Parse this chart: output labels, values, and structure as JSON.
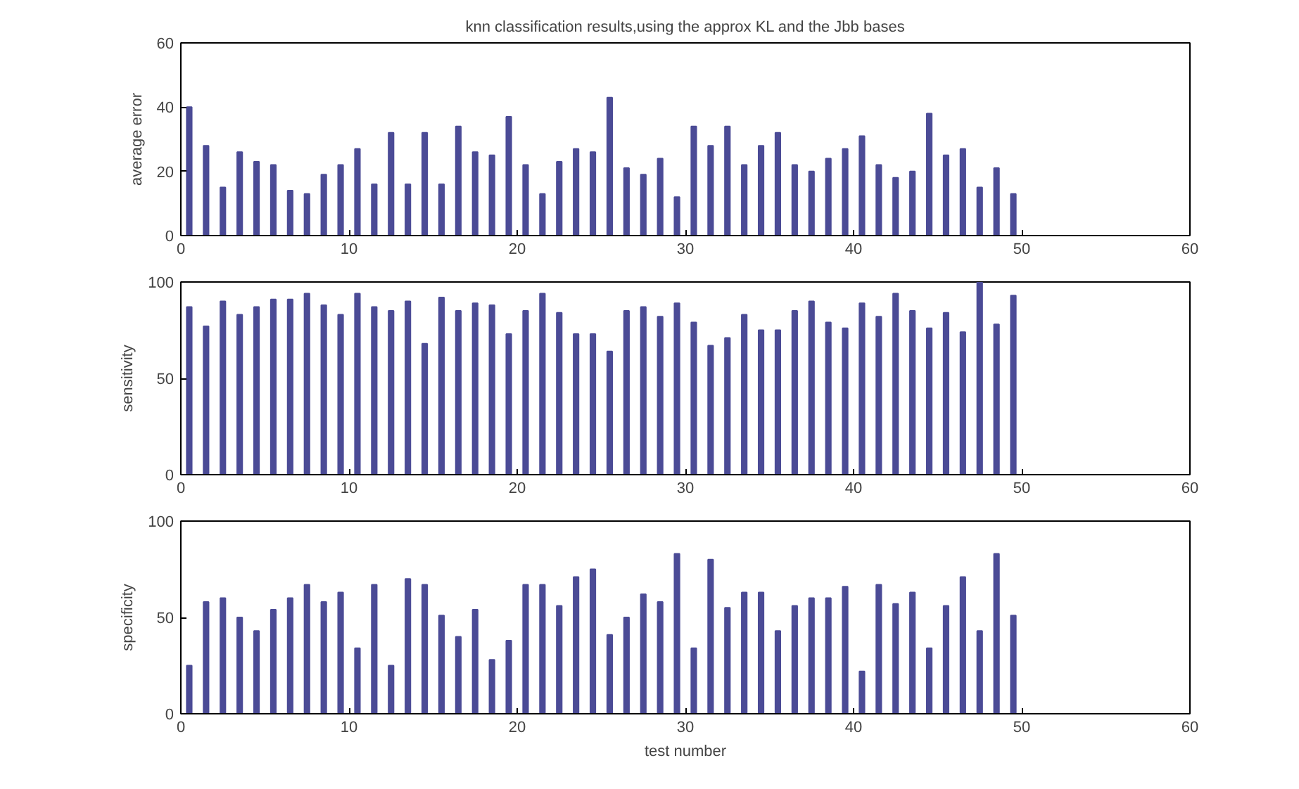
{
  "chart_data": [
    {
      "type": "bar",
      "title": "knn classification results,using the approx KL and the Jbb bases",
      "ylabel": "average error",
      "color": "#4b4b96",
      "x": [
        0.5,
        1.5,
        2.5,
        3.5,
        4.5,
        5.5,
        6.5,
        7.5,
        8.5,
        9.5,
        10.5,
        11.5,
        12.5,
        13.5,
        14.5,
        15.5,
        16.5,
        17.5,
        18.5,
        19.5,
        20.5,
        21.5,
        22.5,
        23.5,
        24.5,
        25.5,
        26.5,
        27.5,
        28.5,
        29.5,
        30.5,
        31.5,
        32.5,
        33.5,
        34.5,
        35.5,
        36.5,
        37.5,
        38.5,
        39.5,
        40.5,
        41.5,
        42.5,
        43.5,
        44.5,
        45.5,
        46.5,
        47.5,
        48.5,
        49.5
      ],
      "values": [
        40,
        28,
        15,
        26,
        23,
        22,
        14,
        13,
        19,
        22,
        27,
        16,
        32,
        16,
        32,
        16,
        34,
        26,
        25,
        37,
        22,
        13,
        23,
        27,
        26,
        43,
        21,
        19,
        24,
        12,
        34,
        28,
        34,
        22,
        28,
        32,
        22,
        20,
        24,
        27,
        31,
        22,
        18,
        20,
        38,
        25,
        27,
        15,
        21,
        13
      ],
      "xlim": [
        0,
        60
      ],
      "ylim": [
        0,
        60
      ],
      "xticks": [
        0,
        10,
        20,
        30,
        40,
        50,
        60
      ],
      "yticks": [
        0,
        20,
        40,
        60
      ]
    },
    {
      "type": "bar",
      "ylabel": "sensitivity",
      "color": "#4b4b96",
      "x": [
        0.5,
        1.5,
        2.5,
        3.5,
        4.5,
        5.5,
        6.5,
        7.5,
        8.5,
        9.5,
        10.5,
        11.5,
        12.5,
        13.5,
        14.5,
        15.5,
        16.5,
        17.5,
        18.5,
        19.5,
        20.5,
        21.5,
        22.5,
        23.5,
        24.5,
        25.5,
        26.5,
        27.5,
        28.5,
        29.5,
        30.5,
        31.5,
        32.5,
        33.5,
        34.5,
        35.5,
        36.5,
        37.5,
        38.5,
        39.5,
        40.5,
        41.5,
        42.5,
        43.5,
        44.5,
        45.5,
        46.5,
        47.5,
        48.5,
        49.5
      ],
      "values": [
        87,
        77,
        90,
        83,
        87,
        91,
        91,
        94,
        88,
        83,
        94,
        87,
        85,
        90,
        68,
        92,
        85,
        89,
        88,
        73,
        85,
        94,
        84,
        73,
        73,
        64,
        85,
        87,
        82,
        89,
        79,
        67,
        71,
        83,
        75,
        75,
        85,
        90,
        79,
        76,
        89,
        82,
        94,
        85,
        76,
        84,
        74,
        100,
        78,
        93
      ],
      "xlim": [
        0,
        60
      ],
      "ylim": [
        0,
        100
      ],
      "xticks": [
        0,
        10,
        20,
        30,
        40,
        50,
        60
      ],
      "yticks": [
        0,
        50,
        100
      ]
    },
    {
      "type": "bar",
      "ylabel": "specificity",
      "xlabel": "test number",
      "color": "#4b4b96",
      "x": [
        0.5,
        1.5,
        2.5,
        3.5,
        4.5,
        5.5,
        6.5,
        7.5,
        8.5,
        9.5,
        10.5,
        11.5,
        12.5,
        13.5,
        14.5,
        15.5,
        16.5,
        17.5,
        18.5,
        19.5,
        20.5,
        21.5,
        22.5,
        23.5,
        24.5,
        25.5,
        26.5,
        27.5,
        28.5,
        29.5,
        30.5,
        31.5,
        32.5,
        33.5,
        34.5,
        35.5,
        36.5,
        37.5,
        38.5,
        39.5,
        40.5,
        41.5,
        42.5,
        43.5,
        44.5,
        45.5,
        46.5,
        47.5,
        48.5,
        49.5
      ],
      "values": [
        25,
        58,
        60,
        50,
        43,
        54,
        60,
        67,
        58,
        63,
        34,
        67,
        25,
        70,
        67,
        51,
        40,
        54,
        28,
        38,
        67,
        67,
        56,
        71,
        75,
        41,
        50,
        62,
        58,
        83,
        34,
        80,
        55,
        63,
        63,
        43,
        56,
        60,
        60,
        66,
        22,
        67,
        57,
        63,
        34,
        56,
        71,
        43,
        83,
        51
      ],
      "xlim": [
        0,
        60
      ],
      "ylim": [
        0,
        100
      ],
      "xticks": [
        0,
        10,
        20,
        30,
        40,
        50,
        60
      ],
      "yticks": [
        0,
        50,
        100
      ]
    }
  ]
}
